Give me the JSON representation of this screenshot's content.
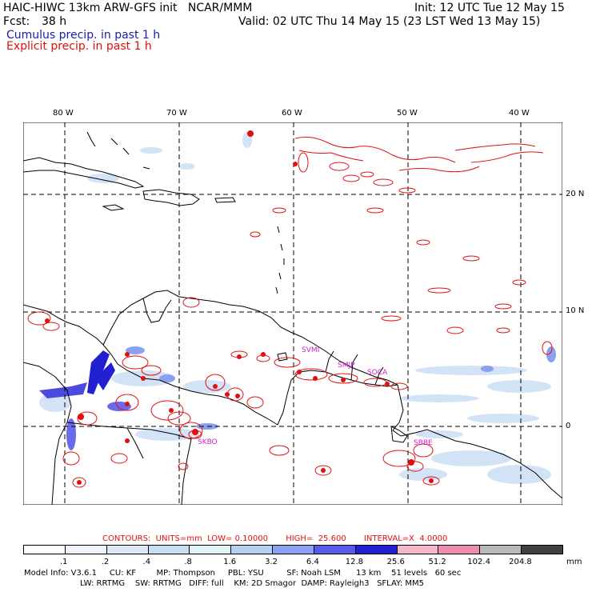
{
  "header": {
    "model_line": "HAIC-HIWC 13km ARW-GFS init   NCAR/MMM",
    "fcst_label": "Fcst:",
    "fcst_value": "38 h",
    "init": "Init: 12 UTC Tue 12 May 15",
    "valid": "Valid: 02 UTC Thu 14 May 15 (23 LST Wed 13 May 15)",
    "cumulus": "Cumulus precip. in past 1 h",
    "explicit": "Explicit precip. in past 1 h"
  },
  "map": {
    "lon_labels": [
      "80 W",
      "70 W",
      "60 W",
      "50 W",
      "40 W"
    ],
    "lat_labels": [
      "20 N",
      "10 N",
      "0"
    ],
    "stations": [
      "SKBO",
      "SVMI",
      "SMJP",
      "SOCA",
      "SBBE"
    ],
    "colors": {
      "explicit": "#e01010",
      "cumulus": "#2020d0",
      "coast": "#000000",
      "station": "#cc22cc"
    }
  },
  "contours": {
    "title": "CONTOURS:  UNITS=mm  LOW= 0.10000       HIGH=  25.600       INTERVAL=X  4.0000"
  },
  "colorbar": {
    "colors": [
      "#ffffff",
      "#f0f4fb",
      "#dce8f7",
      "#c8ddf2",
      "#e0f3f5",
      "#b4cff0",
      "#8aa0f0",
      "#5a5ae8",
      "#2020d0",
      "#f5b8c8",
      "#f08cb0",
      "#b8b8b8",
      "#404040",
      "#d8a8f0"
    ],
    "labels": [
      ".1",
      ".2",
      ".4",
      ".8",
      "1.6",
      "3.2",
      "6.4",
      "12.8",
      "25.6",
      "51.2",
      "102.4",
      "204.8"
    ],
    "unit": "mm"
  },
  "footer": {
    "line1": "Model Info: V3.6.1     CU: KF        MP: Thompson     PBL: YSU         SF: Noah LSM      13 km    51 levels   60 sec",
    "line2": "LW: RRTMG    SW: RRTMG   DIFF: full    KM: 2D Smagor  DAMP: Rayleigh3   SFLAY: MM5"
  }
}
